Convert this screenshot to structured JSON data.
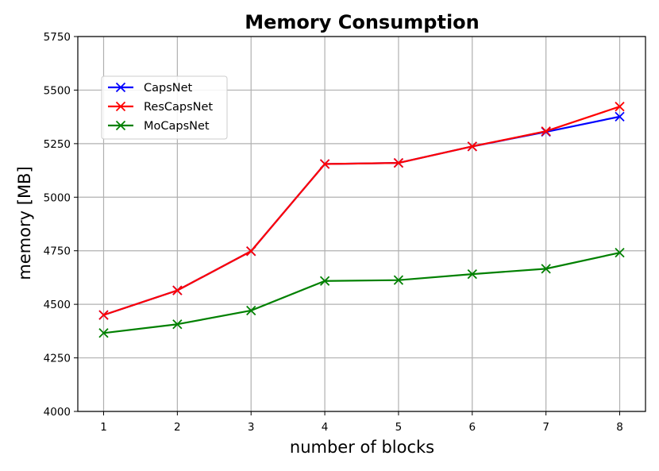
{
  "chart_data": {
    "type": "line",
    "title": "Memory Consumption",
    "xlabel": "number of blocks",
    "ylabel": "memory [MB]",
    "x": [
      1,
      2,
      3,
      4,
      5,
      6,
      7,
      8
    ],
    "xlim": [
      0.65,
      8.35
    ],
    "ylim": [
      4000,
      5750
    ],
    "yticks": [
      4000,
      4250,
      4500,
      4750,
      5000,
      5250,
      5500,
      5750
    ],
    "grid": true,
    "legend_position": "upper-left",
    "series": [
      {
        "name": "CapsNet",
        "color": "#0000ff",
        "marker": "x",
        "values": [
          4450,
          4565,
          4748,
          5155,
          5160,
          5237,
          5305,
          5376
        ]
      },
      {
        "name": "ResCapsNet",
        "color": "#ff0000",
        "marker": "x",
        "values": [
          4450,
          4565,
          4748,
          5155,
          5160,
          5237,
          5308,
          5423
        ]
      },
      {
        "name": "MoCapsNet",
        "color": "#008000",
        "marker": "x",
        "values": [
          4366,
          4407,
          4471,
          4609,
          4613,
          4641,
          4666,
          4741
        ]
      }
    ]
  }
}
